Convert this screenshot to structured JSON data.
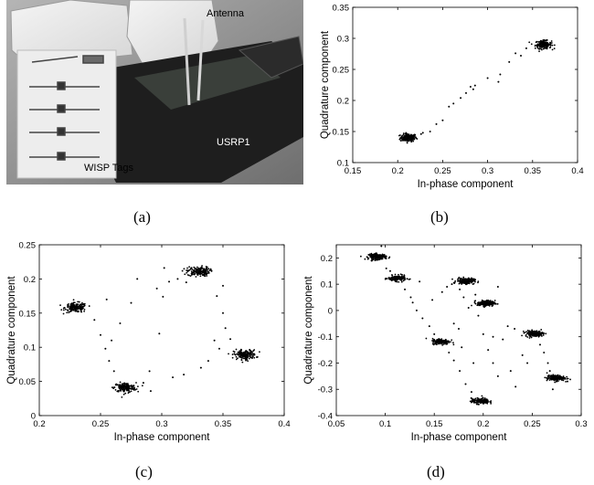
{
  "photo": {
    "labels": {
      "antenna": "Antenna",
      "usrp": "USRP1",
      "wisp": "WISP Tags"
    }
  },
  "captions": {
    "a": "(a)",
    "b": "(b)",
    "c": "(c)",
    "d": "(d)"
  },
  "colors": {
    "points": "#000000",
    "axes": "#000000"
  },
  "chart_data": [
    {
      "id": "b",
      "type": "scatter",
      "title": "",
      "xlabel": "In-phase component",
      "ylabel": "Quadrature component",
      "xlim": [
        0.15,
        0.4
      ],
      "ylim": [
        0.1,
        0.35
      ],
      "xticks": [
        0.15,
        0.2,
        0.25,
        0.3,
        0.35,
        0.4
      ],
      "xtick_labels": [
        "0.15",
        "0.2",
        "0.25",
        "0.3",
        "0.35",
        "0.4"
      ],
      "yticks": [
        0.1,
        0.15,
        0.2,
        0.25,
        0.3,
        0.35
      ],
      "ytick_labels": [
        "0.1",
        "0.15",
        "0.2",
        "0.25",
        "0.3",
        "0.35"
      ],
      "clusters": [
        {
          "x": 0.212,
          "y": 0.14,
          "sx": 0.0045,
          "sy": 0.0032
        },
        {
          "x": 0.362,
          "y": 0.29,
          "sx": 0.0045,
          "sy": 0.0032
        }
      ],
      "points": [
        [
          0.236,
          0.15
        ],
        [
          0.243,
          0.162
        ],
        [
          0.25,
          0.168
        ],
        [
          0.257,
          0.19
        ],
        [
          0.262,
          0.195
        ],
        [
          0.27,
          0.204
        ],
        [
          0.276,
          0.212
        ],
        [
          0.281,
          0.222
        ],
        [
          0.284,
          0.218
        ],
        [
          0.286,
          0.224
        ],
        [
          0.3,
          0.236
        ],
        [
          0.312,
          0.23
        ],
        [
          0.314,
          0.242
        ],
        [
          0.324,
          0.262
        ],
        [
          0.331,
          0.276
        ],
        [
          0.337,
          0.272
        ],
        [
          0.343,
          0.284
        ],
        [
          0.226,
          0.146
        ],
        [
          0.228,
          0.148
        ]
      ]
    },
    {
      "id": "c",
      "type": "scatter",
      "title": "",
      "xlabel": "In-phase component",
      "ylabel": "Quadrature component",
      "xlim": [
        0.2,
        0.4
      ],
      "ylim": [
        0,
        0.25
      ],
      "xticks": [
        0.2,
        0.25,
        0.3,
        0.35,
        0.4
      ],
      "xtick_labels": [
        "0.2",
        "0.25",
        "0.3",
        "0.35",
        "0.4"
      ],
      "yticks": [
        0,
        0.05,
        0.1,
        0.15,
        0.2,
        0.25
      ],
      "ytick_labels": [
        "0",
        "0.05",
        "0.1",
        "0.15",
        "0.2",
        "0.25"
      ],
      "clusters": [
        {
          "x": 0.23,
          "y": 0.158,
          "sx": 0.0045,
          "sy": 0.0035
        },
        {
          "x": 0.27,
          "y": 0.041,
          "sx": 0.0045,
          "sy": 0.0035
        },
        {
          "x": 0.33,
          "y": 0.211,
          "sx": 0.0045,
          "sy": 0.0035
        },
        {
          "x": 0.368,
          "y": 0.089,
          "sx": 0.0045,
          "sy": 0.0035
        }
      ],
      "points": [
        [
          0.245,
          0.14
        ],
        [
          0.25,
          0.118
        ],
        [
          0.254,
          0.098
        ],
        [
          0.257,
          0.08
        ],
        [
          0.261,
          0.065
        ],
        [
          0.259,
          0.11
        ],
        [
          0.266,
          0.135
        ],
        [
          0.275,
          0.165
        ],
        [
          0.296,
          0.186
        ],
        [
          0.301,
          0.174
        ],
        [
          0.306,
          0.196
        ],
        [
          0.313,
          0.2
        ],
        [
          0.302,
          0.216
        ],
        [
          0.345,
          0.175
        ],
        [
          0.35,
          0.15
        ],
        [
          0.352,
          0.128
        ],
        [
          0.356,
          0.112
        ],
        [
          0.338,
          0.08
        ],
        [
          0.332,
          0.07
        ],
        [
          0.318,
          0.06
        ],
        [
          0.309,
          0.056
        ],
        [
          0.29,
          0.065
        ],
        [
          0.285,
          0.048
        ],
        [
          0.291,
          0.036
        ],
        [
          0.255,
          0.17
        ],
        [
          0.32,
          0.195
        ],
        [
          0.343,
          0.11
        ],
        [
          0.347,
          0.098
        ],
        [
          0.28,
          0.2
        ],
        [
          0.298,
          0.12
        ],
        [
          0.35,
          0.19
        ]
      ]
    },
    {
      "id": "d",
      "type": "scatter",
      "title": "",
      "xlabel": "In-phase component",
      "ylabel": "Quadrature component",
      "xlim": [
        0.05,
        0.3
      ],
      "ylim": [
        -0.4,
        0.25
      ],
      "xticks": [
        0.05,
        0.1,
        0.15,
        0.2,
        0.25,
        0.3
      ],
      "xtick_labels": [
        "0.05",
        "0.1",
        "0.15",
        "0.2",
        "0.25",
        "0.3"
      ],
      "yticks": [
        -0.4,
        -0.3,
        -0.2,
        -0.1,
        0,
        0.1,
        0.2
      ],
      "ytick_labels": [
        "-0.4",
        "-0.3",
        "-0.2",
        "-0.1",
        "0",
        "0.1",
        "0.2"
      ],
      "clusters": [
        {
          "x": 0.092,
          "y": 0.205,
          "sx": 0.0045,
          "sy": 0.0055
        },
        {
          "x": 0.112,
          "y": 0.122,
          "sx": 0.0045,
          "sy": 0.0055
        },
        {
          "x": 0.182,
          "y": 0.112,
          "sx": 0.0045,
          "sy": 0.0055
        },
        {
          "x": 0.203,
          "y": 0.027,
          "sx": 0.0045,
          "sy": 0.0055
        },
        {
          "x": 0.157,
          "y": -0.118,
          "sx": 0.0045,
          "sy": 0.0055
        },
        {
          "x": 0.252,
          "y": -0.088,
          "sx": 0.0045,
          "sy": 0.0055
        },
        {
          "x": 0.274,
          "y": -0.257,
          "sx": 0.0045,
          "sy": 0.0055
        },
        {
          "x": 0.197,
          "y": -0.345,
          "sx": 0.0045,
          "sy": 0.0055
        }
      ],
      "points": [
        [
          0.096,
          0.245
        ],
        [
          0.101,
          0.16
        ],
        [
          0.105,
          0.15
        ],
        [
          0.12,
          0.08
        ],
        [
          0.126,
          0.05
        ],
        [
          0.128,
          0.03
        ],
        [
          0.132,
          0.0
        ],
        [
          0.138,
          -0.03
        ],
        [
          0.145,
          -0.06
        ],
        [
          0.15,
          -0.09
        ],
        [
          0.148,
          0.04
        ],
        [
          0.158,
          0.07
        ],
        [
          0.163,
          0.09
        ],
        [
          0.168,
          0.1
        ],
        [
          0.176,
          0.08
        ],
        [
          0.18,
          0.05
        ],
        [
          0.185,
          0.01
        ],
        [
          0.17,
          -0.05
        ],
        [
          0.175,
          -0.07
        ],
        [
          0.165,
          -0.16
        ],
        [
          0.17,
          -0.19
        ],
        [
          0.176,
          -0.23
        ],
        [
          0.182,
          -0.28
        ],
        [
          0.188,
          -0.31
        ],
        [
          0.195,
          -0.02
        ],
        [
          0.2,
          -0.09
        ],
        [
          0.205,
          -0.15
        ],
        [
          0.21,
          -0.2
        ],
        [
          0.215,
          -0.25
        ],
        [
          0.22,
          -0.11
        ],
        [
          0.225,
          -0.06
        ],
        [
          0.232,
          -0.07
        ],
        [
          0.228,
          -0.23
        ],
        [
          0.233,
          -0.29
        ],
        [
          0.24,
          -0.17
        ],
        [
          0.245,
          -0.2
        ],
        [
          0.258,
          -0.13
        ],
        [
          0.262,
          -0.16
        ],
        [
          0.266,
          -0.2
        ],
        [
          0.268,
          -0.23
        ],
        [
          0.271,
          -0.3
        ],
        [
          0.286,
          -0.27
        ],
        [
          0.215,
          0.09
        ],
        [
          0.192,
          0.06
        ],
        [
          0.135,
          0.11
        ],
        [
          0.21,
          -0.1
        ],
        [
          0.19,
          -0.2
        ],
        [
          0.178,
          -0.14
        ]
      ]
    }
  ]
}
